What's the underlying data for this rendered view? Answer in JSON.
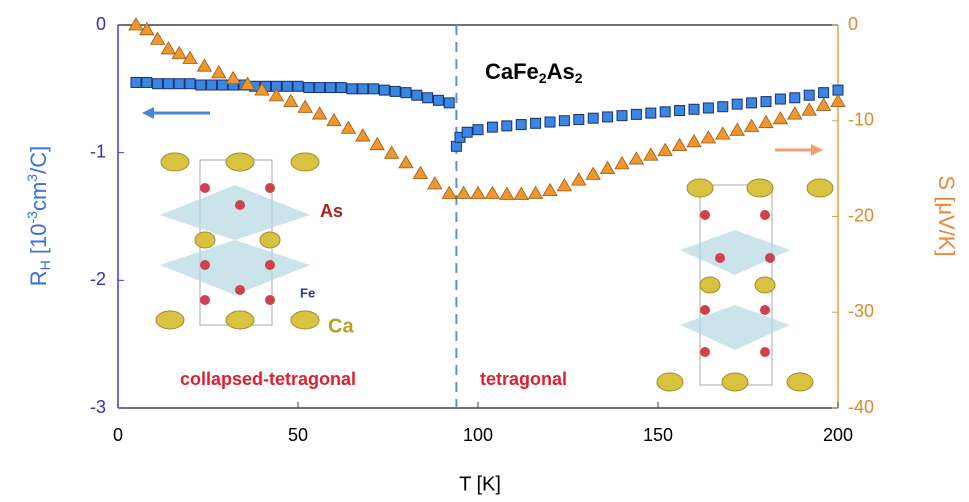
{
  "chart_data": {
    "type": "scatter",
    "title": [
      "CaFe",
      "2",
      "As",
      "2"
    ],
    "xlabel": "T [K]",
    "ylabel": [
      "R",
      "H",
      " [10",
      "-3",
      "cm",
      "3",
      "/C]"
    ],
    "y2label": "S [μV/K]",
    "xlim": [
      0,
      200
    ],
    "xticks": [
      0,
      50,
      100,
      150,
      200
    ],
    "ylim": [
      -3,
      0
    ],
    "yticks": [
      0,
      -1,
      -2,
      -3
    ],
    "y2lim": [
      -40,
      0
    ],
    "y2ticks": [
      0,
      -10,
      -20,
      -30,
      -40
    ],
    "vline": 94,
    "annotations": [
      "collapsed-tetragonal",
      "tetragonal",
      "As",
      "Fe",
      "Ca"
    ],
    "series": [
      {
        "color": "#3a86e0",
        "marker": "square",
        "x": [
          5,
          8,
          11,
          14,
          17,
          20,
          23,
          26,
          29,
          32,
          35,
          38,
          41,
          44,
          47,
          50,
          53,
          56,
          59,
          62,
          65,
          68,
          71,
          74,
          77,
          80,
          83,
          86,
          89,
          92,
          94,
          95,
          97,
          100,
          104,
          108,
          112,
          116,
          120,
          124,
          128,
          132,
          136,
          140,
          144,
          148,
          152,
          156,
          160,
          164,
          168,
          172,
          176,
          180,
          184,
          188,
          192,
          196,
          200
        ],
        "values": [
          -0.45,
          -0.45,
          -0.46,
          -0.46,
          -0.46,
          -0.46,
          -0.47,
          -0.47,
          -0.47,
          -0.47,
          -0.47,
          -0.48,
          -0.48,
          -0.48,
          -0.48,
          -0.48,
          -0.49,
          -0.49,
          -0.49,
          -0.49,
          -0.5,
          -0.5,
          -0.5,
          -0.51,
          -0.52,
          -0.53,
          -0.55,
          -0.57,
          -0.59,
          -0.61,
          -0.95,
          -0.88,
          -0.84,
          -0.82,
          -0.8,
          -0.79,
          -0.78,
          -0.77,
          -0.76,
          -0.75,
          -0.74,
          -0.73,
          -0.72,
          -0.71,
          -0.7,
          -0.69,
          -0.68,
          -0.67,
          -0.66,
          -0.65,
          -0.64,
          -0.62,
          -0.61,
          -0.6,
          -0.58,
          -0.57,
          -0.55,
          -0.53,
          -0.51
        ]
      },
      {
        "color": "#f0962e",
        "marker": "triangle",
        "axis": "y2",
        "x": [
          5,
          8,
          11,
          14,
          17,
          20,
          24,
          28,
          32,
          36,
          40,
          44,
          48,
          52,
          56,
          60,
          64,
          68,
          72,
          76,
          80,
          84,
          88,
          92,
          96,
          100,
          104,
          108,
          112,
          116,
          120,
          124,
          128,
          132,
          136,
          140,
          144,
          148,
          152,
          156,
          160,
          164,
          168,
          172,
          176,
          180,
          184,
          188,
          192,
          196,
          200
        ],
        "values": [
          0,
          -0.5,
          -1.5,
          -2.5,
          -3,
          -3.5,
          -4.3,
          -5,
          -5.6,
          -6.2,
          -6.8,
          -7.4,
          -8,
          -8.6,
          -9.3,
          -10,
          -10.8,
          -11.6,
          -12.5,
          -13.4,
          -14.4,
          -15.5,
          -16.6,
          -17.6,
          -17.6,
          -17.6,
          -17.6,
          -17.7,
          -17.7,
          -17.6,
          -17.3,
          -16.8,
          -16.2,
          -15.6,
          -15,
          -14.5,
          -14,
          -13.6,
          -13.1,
          -12.6,
          -12.2,
          -11.8,
          -11.4,
          -11,
          -10.6,
          -10.2,
          -9.8,
          -9.3,
          -8.9,
          -8.4,
          -8.0
        ]
      }
    ]
  }
}
